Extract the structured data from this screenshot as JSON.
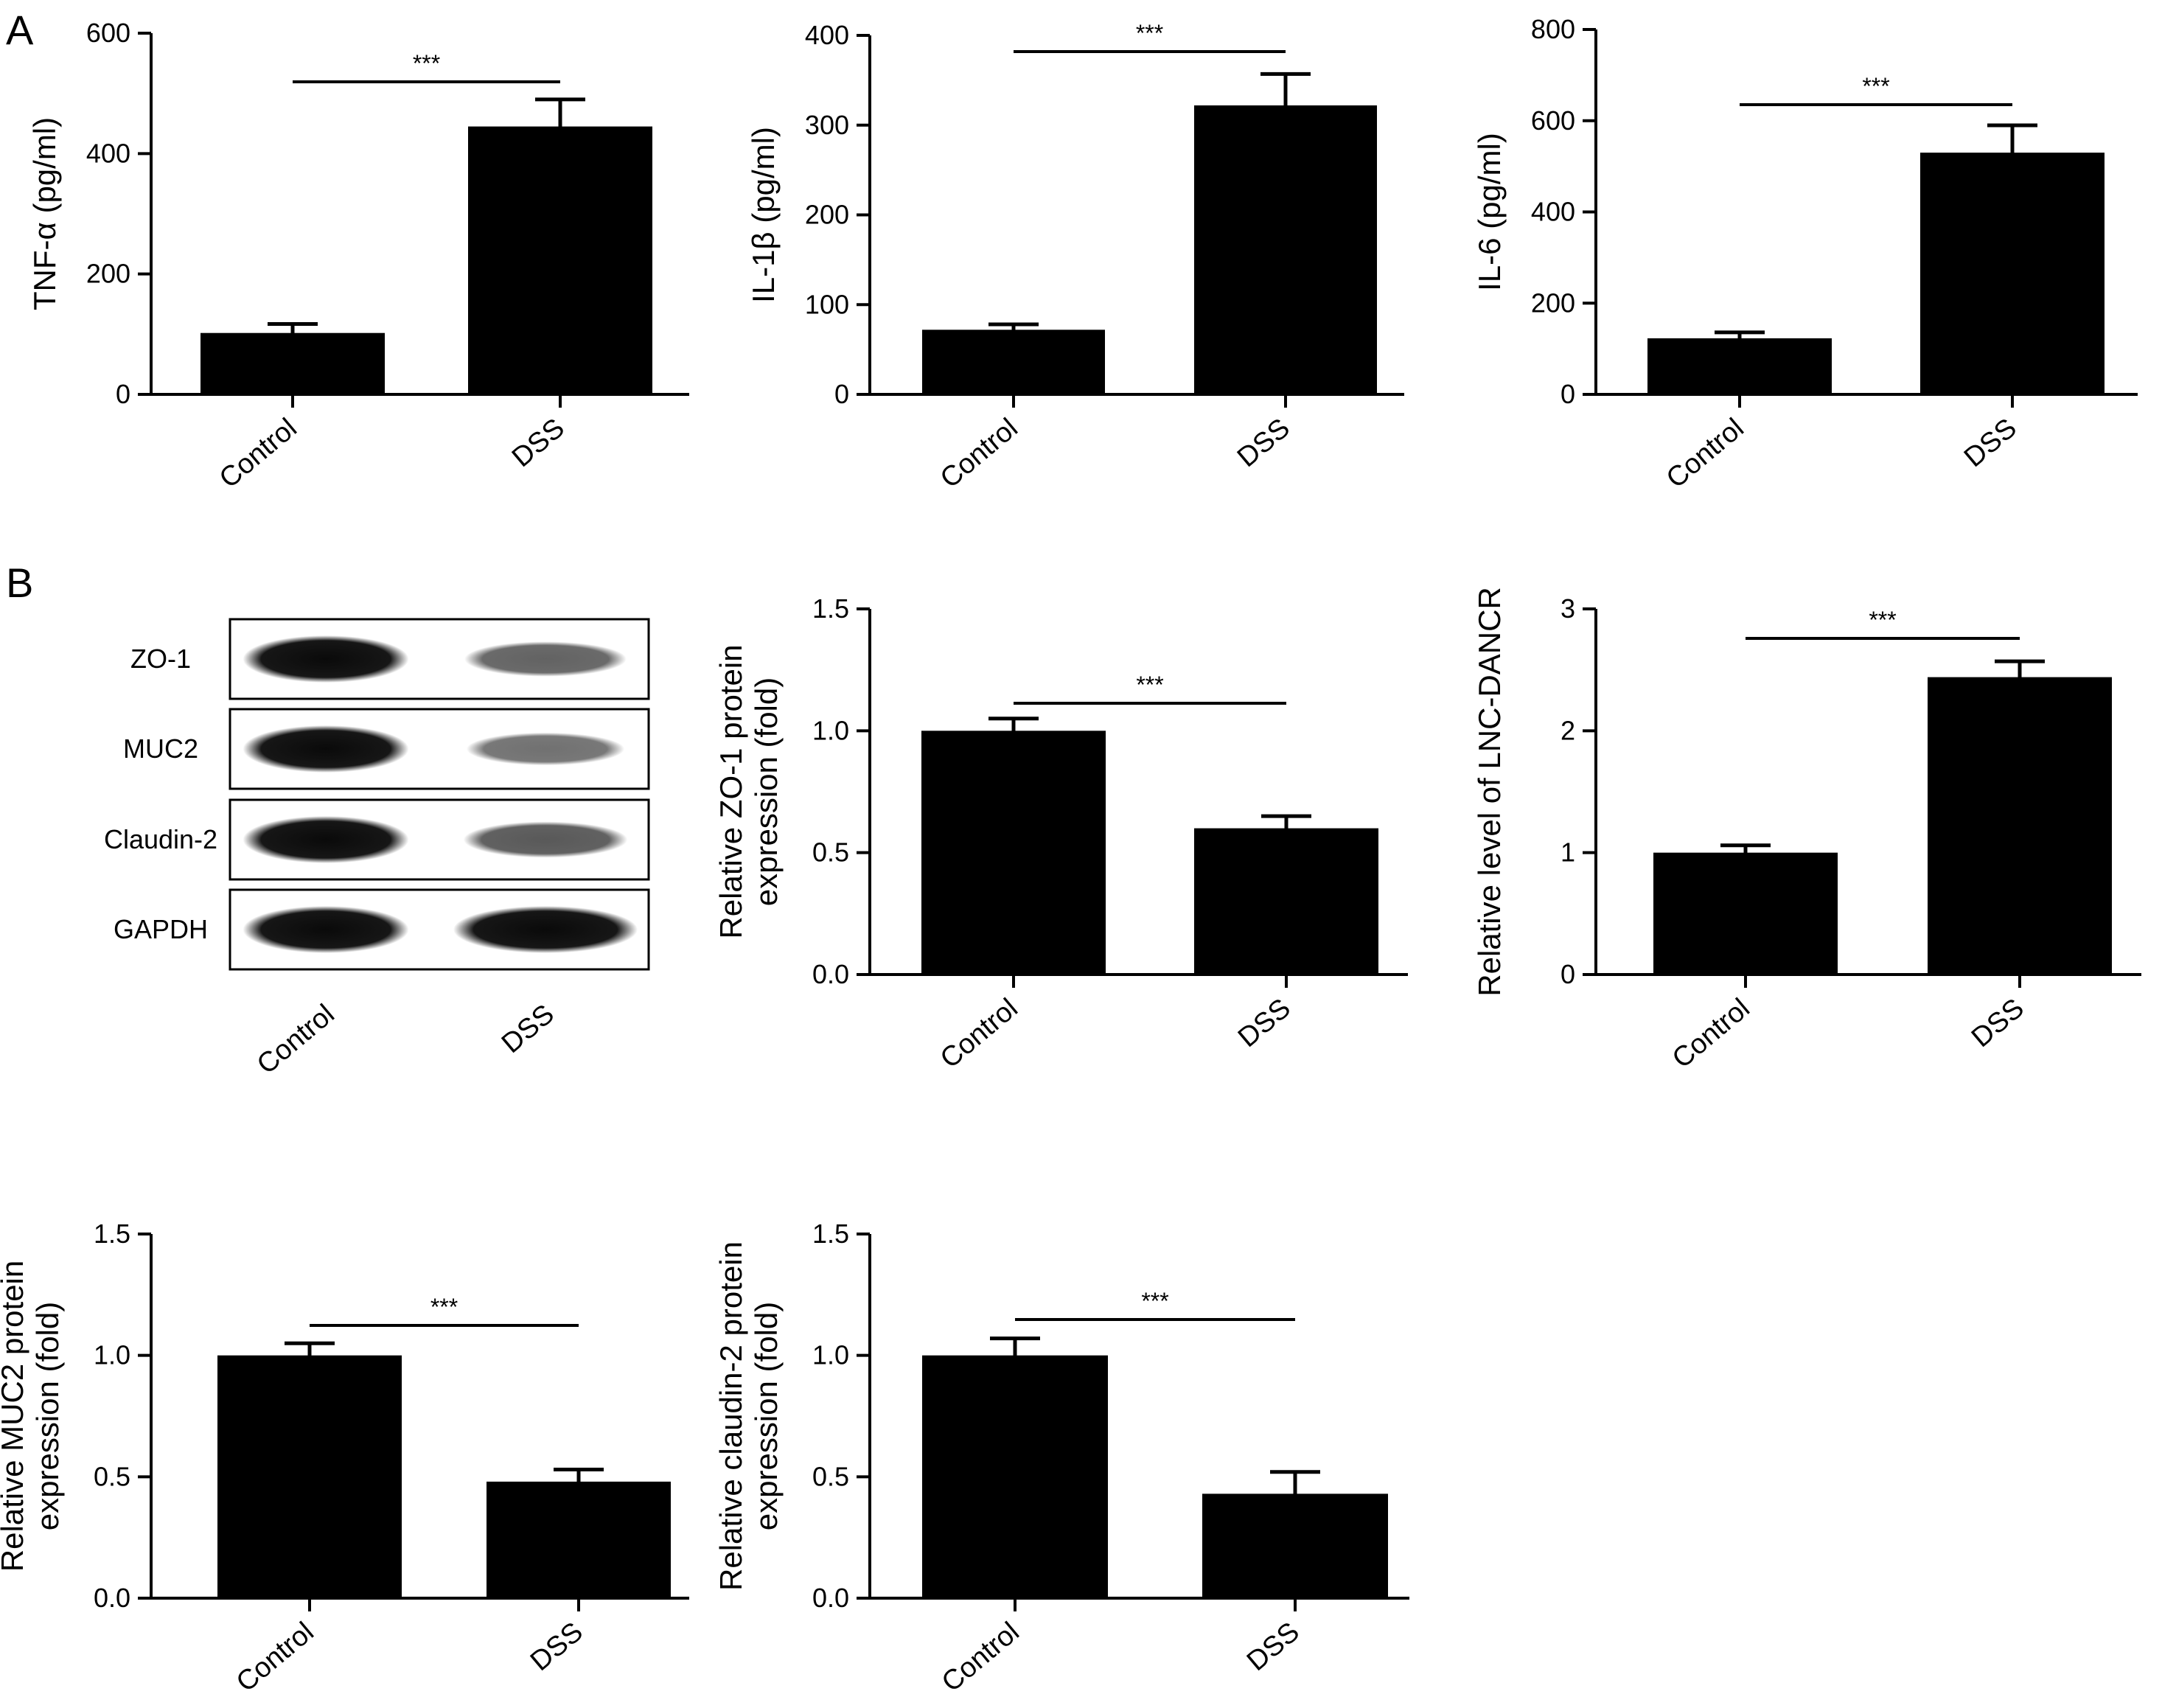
{
  "panels": [
    {
      "letter": "A"
    },
    {
      "letter": "B"
    }
  ],
  "colors": {
    "bar": "#000000",
    "axis": "#000000",
    "background": "#ffffff",
    "blot_band": "#0a0a0a",
    "blot_background": "#ffffff"
  },
  "blot": {
    "rows": [
      {
        "label": "ZO-1",
        "intensity": [
          1.0,
          0.45
        ]
      },
      {
        "label": "MUC2",
        "intensity": [
          1.0,
          0.35
        ]
      },
      {
        "label": "Claudin-2",
        "intensity": [
          1.0,
          0.5
        ]
      },
      {
        "label": "GAPDH",
        "intensity": [
          1.0,
          1.0
        ]
      }
    ],
    "lanes": [
      "Control",
      "DSS"
    ]
  },
  "chart_data": [
    {
      "type": "bar",
      "panel": "A",
      "categories": [
        "Control",
        "DSS"
      ],
      "values": [
        102,
        445
      ],
      "errors": [
        15,
        45
      ],
      "ylabel": "TNF-α (pg/ml)",
      "ylim": [
        0,
        600
      ],
      "yticks": [
        "0",
        "200",
        "400",
        "600"
      ],
      "significance": "***",
      "grid": false
    },
    {
      "type": "bar",
      "panel": "A",
      "categories": [
        "Control",
        "DSS"
      ],
      "values": [
        72,
        322
      ],
      "errors": [
        6,
        35
      ],
      "ylabel": "IL-1β (pg/ml)",
      "ylim": [
        0,
        400
      ],
      "yticks": [
        "0",
        "100",
        "200",
        "300",
        "400"
      ],
      "significance": "***",
      "grid": false
    },
    {
      "type": "bar",
      "panel": "A",
      "categories": [
        "Control",
        "DSS"
      ],
      "values": [
        123,
        530
      ],
      "errors": [
        13,
        60
      ],
      "ylabel": "IL-6 (pg/ml)",
      "ylim": [
        0,
        800
      ],
      "yticks": [
        "0",
        "200",
        "400",
        "600",
        "800"
      ],
      "significance": "***",
      "grid": false
    },
    {
      "type": "bar",
      "panel": "B",
      "categories": [
        "Control",
        "DSS"
      ],
      "values": [
        1.0,
        0.6
      ],
      "errors": [
        0.05,
        0.05
      ],
      "ylabel": [
        "Relative ZO-1 protein",
        "expression (fold)"
      ],
      "ylim": [
        0,
        1.5
      ],
      "yticks": [
        "0.0",
        "0.5",
        "1.0",
        "1.5"
      ],
      "significance": "***",
      "grid": false
    },
    {
      "type": "bar",
      "panel": "B",
      "categories": [
        "Control",
        "DSS"
      ],
      "values": [
        1.0,
        2.44
      ],
      "errors": [
        0.06,
        0.13
      ],
      "ylabel": "Relative level of LNC-DANCR",
      "ylim": [
        0,
        3
      ],
      "yticks": [
        "0",
        "1",
        "2",
        "3"
      ],
      "significance": "***",
      "grid": false
    },
    {
      "type": "bar",
      "panel": "B",
      "categories": [
        "Control",
        "DSS"
      ],
      "values": [
        1.0,
        0.48
      ],
      "errors": [
        0.05,
        0.05
      ],
      "ylabel": [
        "Relative  MUC2 protein",
        "expression (fold)"
      ],
      "ylim": [
        0,
        1.5
      ],
      "yticks": [
        "0.0",
        "0.5",
        "1.0",
        "1.5"
      ],
      "significance": "***",
      "grid": false
    },
    {
      "type": "bar",
      "panel": "B",
      "categories": [
        "Control",
        "DSS"
      ],
      "values": [
        1.0,
        0.43
      ],
      "errors": [
        0.07,
        0.09
      ],
      "ylabel": [
        "Relative  claudin-2 protein",
        "expression (fold)"
      ],
      "ylim": [
        0,
        1.5
      ],
      "yticks": [
        "0.0",
        "0.5",
        "1.0",
        "1.5"
      ],
      "significance": "***",
      "grid": false
    }
  ]
}
